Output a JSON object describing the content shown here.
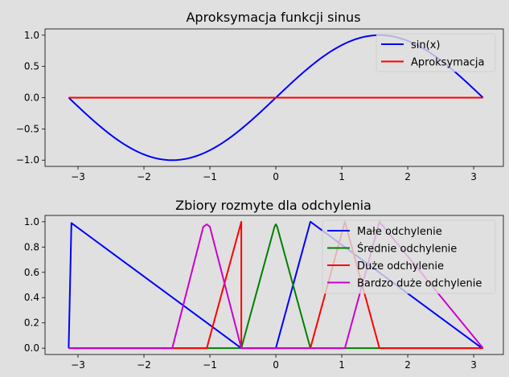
{
  "figure": {
    "background": "#e0e0e0",
    "axes_background": "#e0e0e0"
  },
  "chart_data": [
    {
      "type": "line",
      "title": "Aproksymacja funkcji sinus",
      "xlabel": "",
      "ylabel": "",
      "xlim": [
        -3.5,
        3.45
      ],
      "ylim": [
        -1.1,
        1.1
      ],
      "xticks": [
        -3,
        -2,
        -1,
        0,
        1,
        2,
        3
      ],
      "yticks": [
        -1.0,
        -0.5,
        0.0,
        0.5,
        1.0
      ],
      "xtick_labels": [
        "−3",
        "−2",
        "−1",
        "0",
        "1",
        "2",
        "3"
      ],
      "ytick_labels": [
        "−1.0",
        "−0.5",
        "0.0",
        "0.5",
        "1.0"
      ],
      "grid": false,
      "legend_position": "top-right",
      "series": [
        {
          "name": "sin(x)",
          "color": "#0000ff",
          "function": "sin",
          "x_range": [
            -3.14159,
            3.14159
          ]
        },
        {
          "name": "Aproksymacja",
          "color": "#ff0000",
          "x": [
            -3.14159,
            3.14159
          ],
          "y": [
            0,
            0
          ]
        }
      ]
    },
    {
      "type": "line",
      "title": "Zbiory rozmyte dla odchylenia",
      "xlabel": "",
      "ylabel": "",
      "xlim": [
        -3.5,
        3.45
      ],
      "ylim": [
        -0.05,
        1.05
      ],
      "xticks": [
        -3,
        -2,
        -1,
        0,
        1,
        2,
        3
      ],
      "yticks": [
        0.0,
        0.2,
        0.4,
        0.6,
        0.8,
        1.0
      ],
      "xtick_labels": [
        "−3",
        "−2",
        "−1",
        "0",
        "1",
        "2",
        "3"
      ],
      "ytick_labels": [
        "0.0",
        "0.2",
        "0.4",
        "0.6",
        "0.8",
        "1.0"
      ],
      "grid": false,
      "legend_position": "top-right",
      "series": [
        {
          "name": "Małe odchylenie",
          "color": "#0000ff",
          "x": [
            -3.14159,
            -3.1,
            -0.5236,
            0,
            0.5236,
            3.1,
            3.14159
          ],
          "y": [
            0,
            0.99,
            0,
            0,
            1,
            0.01,
            0
          ]
        },
        {
          "name": "Średnie odchylenie",
          "color": "#008000",
          "x": [
            -3.14159,
            -0.5236,
            -0.02,
            0,
            0.02,
            0.5236,
            3.14159
          ],
          "y": [
            0,
            0,
            0.96,
            0.98,
            0.96,
            0,
            0
          ]
        },
        {
          "name": "Duże odchylenie",
          "color": "#ff0000",
          "x": [
            -3.14159,
            -1.0472,
            -0.5236,
            -0.5236,
            0.5236,
            1.0472,
            1.5708,
            3.14159
          ],
          "y": [
            0,
            0,
            1,
            0,
            0,
            1,
            0,
            0
          ]
        },
        {
          "name": "Bardzo duże odchylenie",
          "color": "#cc00cc",
          "x": [
            -3.14159,
            -1.5708,
            -1.1,
            -1.0472,
            -1.0,
            -0.5236,
            1.0472,
            1.5708,
            3.14159
          ],
          "y": [
            0,
            0,
            0.96,
            0.98,
            0.96,
            0,
            0,
            1,
            0
          ]
        }
      ]
    }
  ]
}
